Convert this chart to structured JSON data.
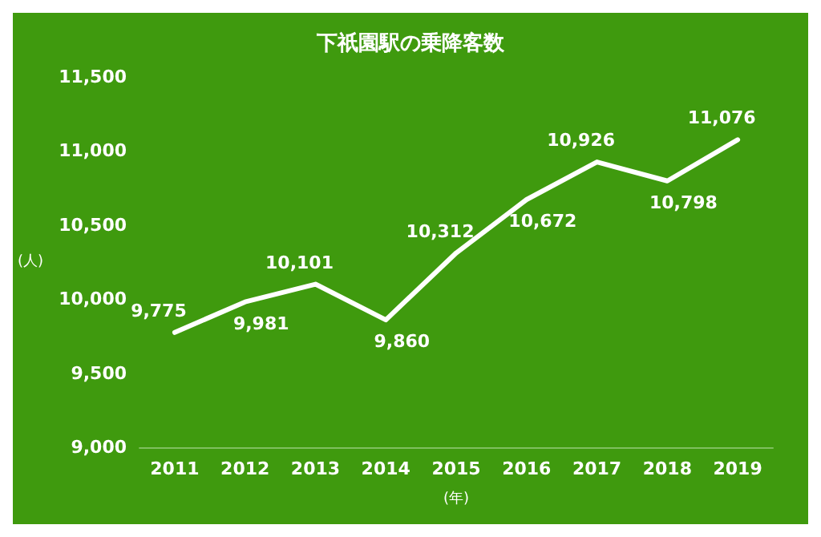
{
  "chart_data": {
    "type": "line",
    "title": "下祇園駅の乗降客数",
    "ylabel": "(人)",
    "xlabel": "(年)",
    "categories": [
      "2011",
      "2012",
      "2013",
      "2014",
      "2015",
      "2016",
      "2017",
      "2018",
      "2019"
    ],
    "series": [
      {
        "color": "#ffffff",
        "values": [
          9775,
          9981,
          10101,
          9860,
          10312,
          10672,
          10926,
          10798,
          11076
        ],
        "value_labels": [
          "9,775",
          "9,981",
          "10,101",
          "9,860",
          "10,312",
          "10,672",
          "10,926",
          "10,798",
          "11,076"
        ]
      }
    ],
    "ylim": [
      9000,
      11500
    ],
    "yticks": [
      {
        "value": 9000,
        "label": "9,000"
      },
      {
        "value": 9500,
        "label": "9,500"
      },
      {
        "value": 10000,
        "label": "10,000"
      },
      {
        "value": 10500,
        "label": "10,500"
      },
      {
        "value": 11000,
        "label": "11,000"
      },
      {
        "value": 11500,
        "label": "11,500"
      }
    ],
    "grid": false,
    "marker": "none",
    "line_style": "solid"
  }
}
